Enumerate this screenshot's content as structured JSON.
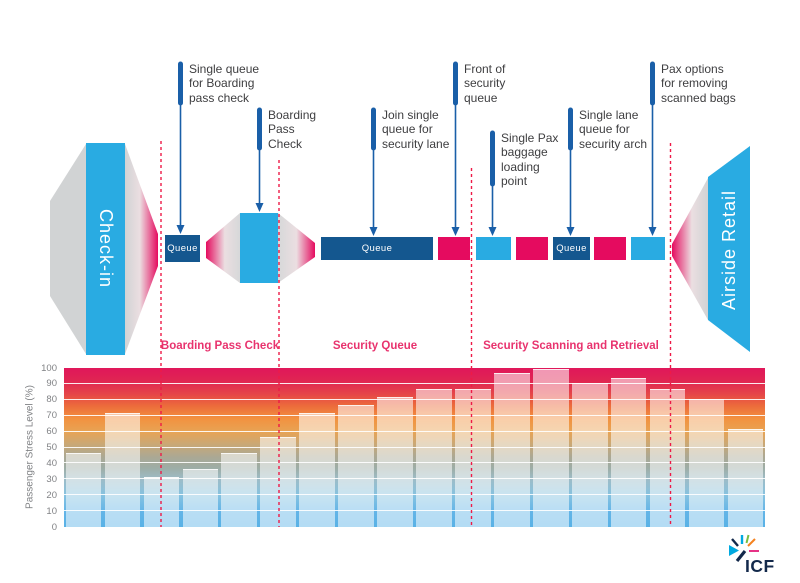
{
  "flow": {
    "checkin_label": "Check-in",
    "airside_label": "Airside Retail",
    "queue_label": "Queue"
  },
  "annotations": [
    {
      "text": "Single queue\nfor Boarding\npass check"
    },
    {
      "text": "Boarding\nPass\nCheck"
    },
    {
      "text": "Join single\nqueue for\nsecurity lane"
    },
    {
      "text": "Front of\nsecurity\nqueue"
    },
    {
      "text": "Single Pax\nbaggage\nloading\npoint"
    },
    {
      "text": "Single lane\nqueue for\nsecurity arch"
    },
    {
      "text": "Pax options\nfor removing\nscanned bags"
    }
  ],
  "sections": [
    {
      "label": "Boarding Pass Check"
    },
    {
      "label": "Security Queue"
    },
    {
      "label": "Security Scanning and Retrieval"
    }
  ],
  "chart_data": {
    "type": "bar",
    "title": "",
    "ylabel": "Passenger Stress Level (%)",
    "ylim": [
      0,
      100
    ],
    "y_ticks": [
      0,
      10,
      20,
      30,
      40,
      50,
      60,
      70,
      80,
      90,
      100
    ],
    "grid": "horizontal white lines every 10",
    "legend": "none",
    "values": [
      46,
      71,
      31,
      36,
      46,
      56,
      71,
      76,
      81,
      86,
      86,
      96,
      99,
      90,
      93,
      86,
      80,
      61
    ],
    "bar_style": "translucent white bars over a red-to-blue stress gradient background"
  },
  "logo": {
    "text": "ICF"
  },
  "colors": {
    "navy_box": "#14578F",
    "cyan": "#29ABE2",
    "magenta": "#E50B5F",
    "arrow_navy": "#1A5FA8",
    "dashed_divider": "#EE1A47",
    "section_label": "#E8336E",
    "funnel_gray": "#D1D3D4",
    "annotation_text": "#3E3E40",
    "axis_text": "#808285",
    "logo_navy": "#13294B"
  }
}
